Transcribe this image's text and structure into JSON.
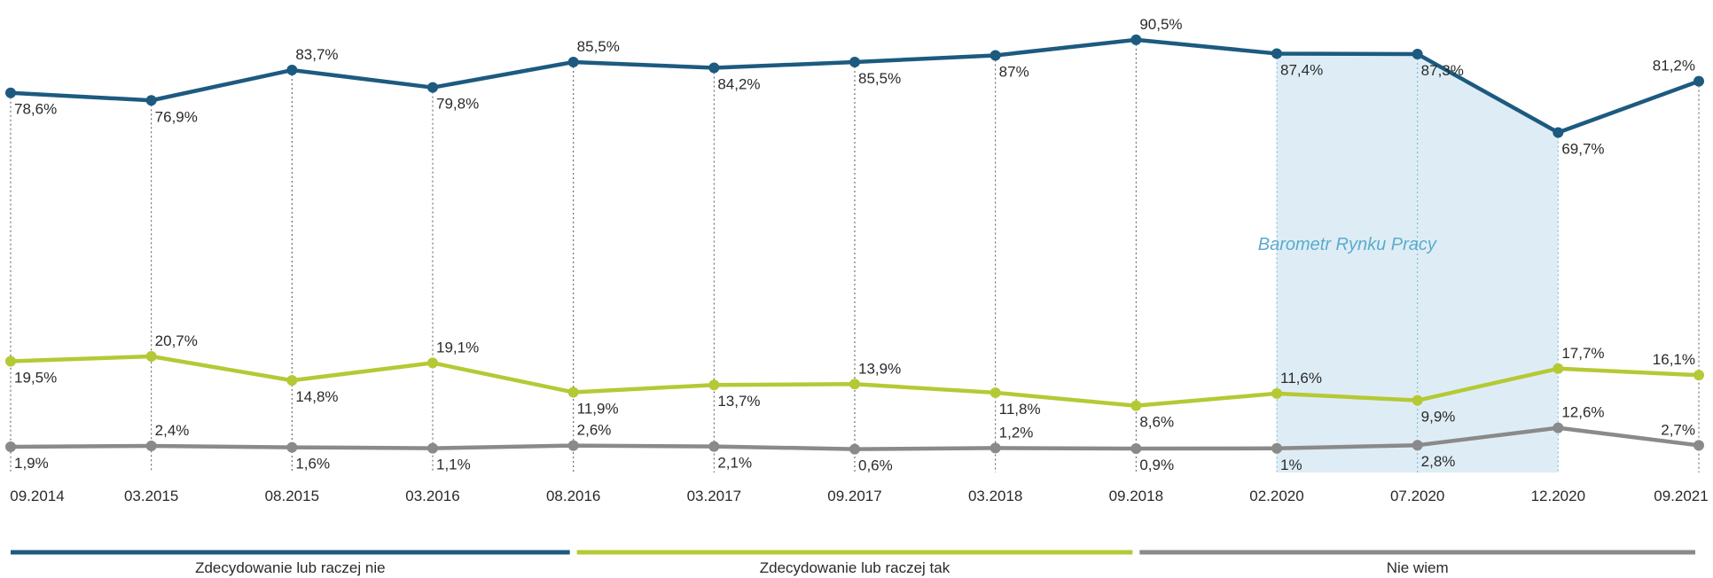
{
  "chart_data": {
    "type": "line",
    "categories": [
      "09.2014",
      "03.2015",
      "08.2015",
      "03.2016",
      "08.2016",
      "03.2017",
      "09.2017",
      "03.2018",
      "09.2018",
      "02.2020",
      "07.2020",
      "12.2020",
      "09.2021"
    ],
    "series": [
      {
        "name": "Zdecydowanie lub raczej nie",
        "color": "#1d5a80",
        "values": [
          78.6,
          76.9,
          83.7,
          79.8,
          85.5,
          84.2,
          85.5,
          87,
          90.5,
          87.4,
          87.3,
          69.7,
          81.2
        ],
        "labels": [
          "78,6%",
          "76,9%",
          "83,7%",
          "79,8%",
          "85,5%",
          "84,2%",
          "85,5%",
          "87%",
          "90,5%",
          "87,4%",
          "87,3%",
          "69,7%",
          "81,2%"
        ]
      },
      {
        "name": "Zdecydowanie lub raczej tak",
        "color": "#b5c935",
        "values": [
          19.5,
          20.7,
          14.8,
          19.1,
          11.9,
          13.7,
          13.9,
          11.8,
          8.6,
          11.6,
          9.9,
          17.7,
          16.1
        ],
        "labels": [
          "19,5%",
          "20,7%",
          "14,8%",
          "19,1%",
          "11,9%",
          "13,7%",
          "13,9%",
          "11,8%",
          "8,6%",
          "11,6%",
          "9,9%",
          "17,7%",
          "16,1%"
        ]
      },
      {
        "name": "Nie wiem",
        "color": "#8a8a8a",
        "values": [
          1.9,
          2.4,
          1.6,
          1.1,
          2.6,
          2.1,
          0.6,
          1.2,
          0.9,
          1,
          2.8,
          12.6,
          2.7
        ],
        "labels": [
          "1,9%",
          "2,4%",
          "1,6%",
          "1,1%",
          "2,6%",
          "2,1%",
          "0,6%",
          "1,2%",
          "0,9%",
          "1%",
          "2,8%",
          "12,6%",
          "2,7%"
        ]
      }
    ],
    "highlight": {
      "label": "Barometr Rynku Pracy",
      "color": "#deedf5",
      "text_color": "#5aaccc",
      "from_category": "02.2020",
      "to_category": "12.2020"
    },
    "legend_position": "bottom",
    "grid": false
  }
}
